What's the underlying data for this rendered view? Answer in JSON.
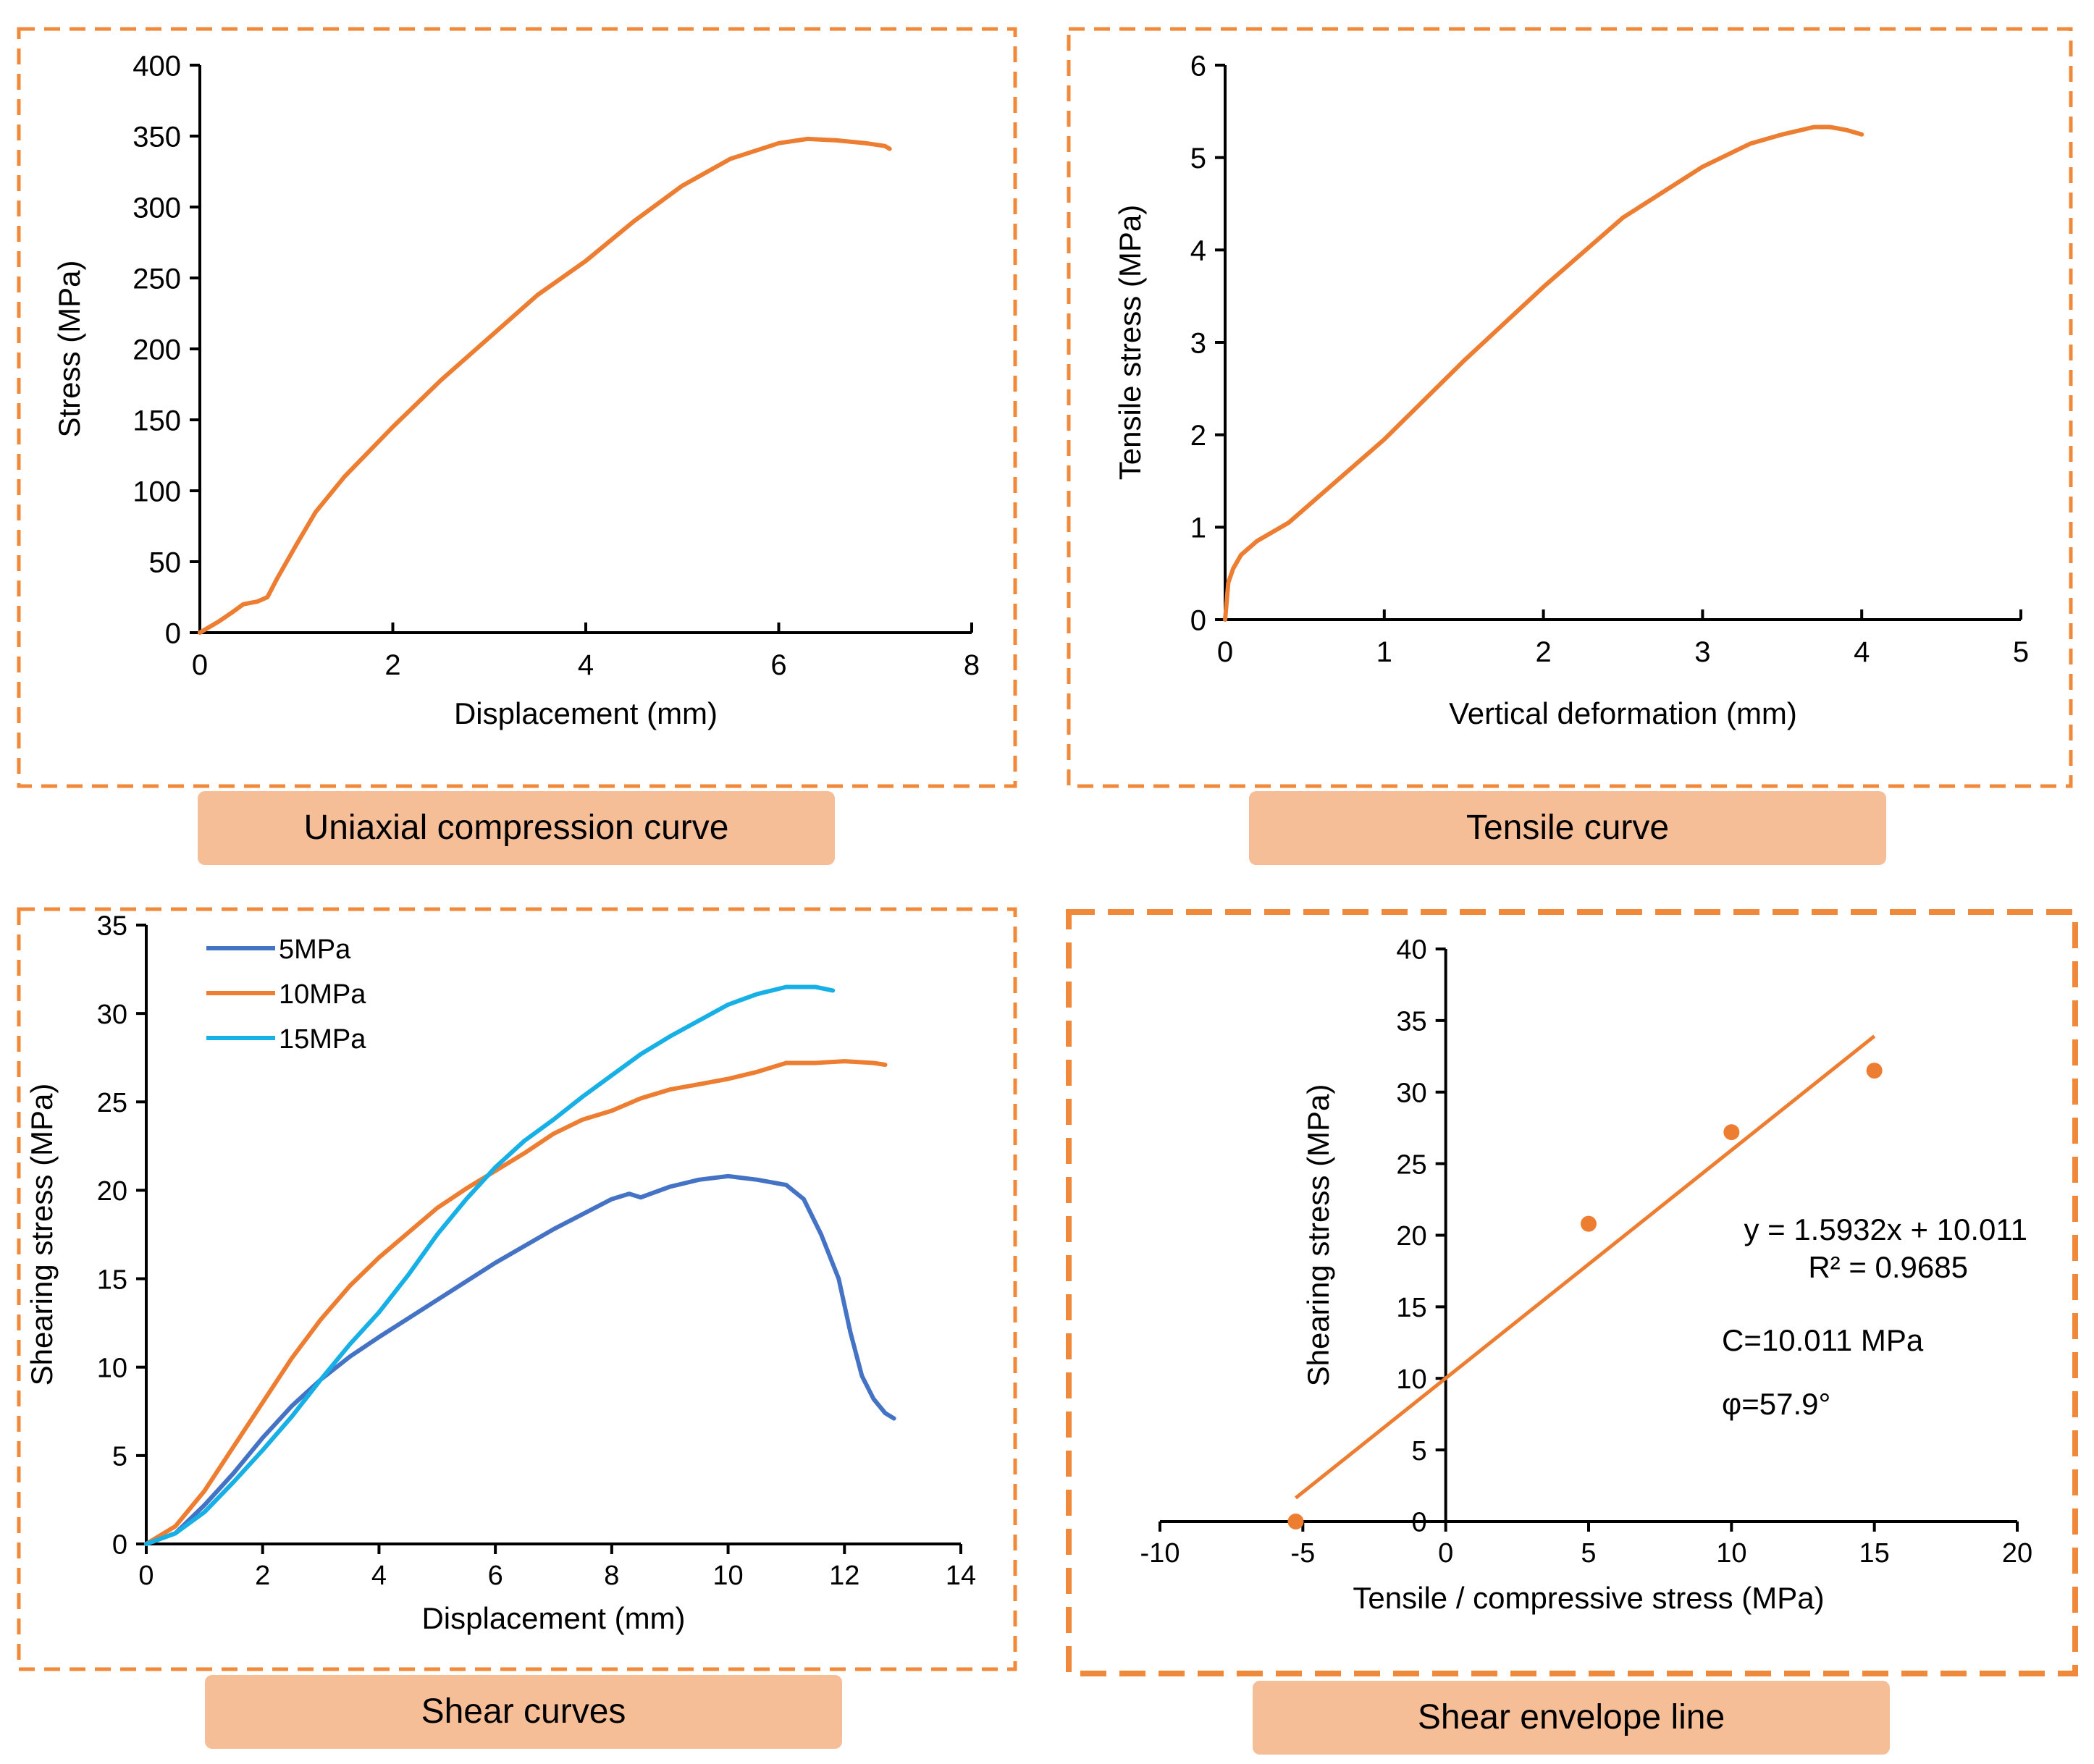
{
  "colors": {
    "panel_border": "#F08A3A",
    "caption_fill": "#F5BE96",
    "orange": "#ED7D31",
    "blue": "#4472C4",
    "cyan": "#16B0E6"
  },
  "captions": {
    "p1": "Uniaxial compression curve",
    "p2": "Tensile curve",
    "p3": "Shear curves",
    "p4": "Shear envelope line"
  },
  "chart_data": [
    {
      "id": "p1",
      "type": "line",
      "xlabel": "Displacement (mm)",
      "ylabel": "Stress (MPa)",
      "xlim": [
        0,
        8
      ],
      "ylim": [
        0,
        400
      ],
      "xticks": [
        0,
        2,
        4,
        6,
        8
      ],
      "yticks": [
        0,
        50,
        100,
        150,
        200,
        250,
        300,
        350,
        400
      ],
      "grid": false,
      "series": [
        {
          "color": "#ED7D31",
          "x": [
            0,
            0.2,
            0.35,
            0.45,
            0.6,
            0.7,
            0.8,
            1.0,
            1.2,
            1.5,
            2.0,
            2.5,
            3.0,
            3.5,
            4.0,
            4.5,
            5.0,
            5.5,
            6.0,
            6.3,
            6.6,
            6.9,
            7.1,
            7.15
          ],
          "y": [
            0,
            8,
            15,
            20,
            22,
            25,
            38,
            62,
            85,
            110,
            145,
            178,
            208,
            238,
            262,
            290,
            315,
            334,
            345,
            348,
            347,
            345,
            343,
            341
          ]
        }
      ]
    },
    {
      "id": "p2",
      "type": "line",
      "xlabel": "Vertical deformation (mm)",
      "ylabel": "Tensile stress (MPa)",
      "xlim": [
        0,
        5
      ],
      "ylim": [
        0,
        6
      ],
      "xticks": [
        0,
        1,
        2,
        3,
        4,
        5
      ],
      "yticks": [
        0,
        1,
        2,
        3,
        4,
        5,
        6
      ],
      "grid": false,
      "series": [
        {
          "color": "#ED7D31",
          "x": [
            0,
            0.02,
            0.05,
            0.1,
            0.2,
            0.4,
            0.6,
            0.8,
            1.0,
            1.5,
            2.0,
            2.5,
            3.0,
            3.3,
            3.5,
            3.7,
            3.8,
            3.9,
            4.0
          ],
          "y": [
            0,
            0.4,
            0.55,
            0.7,
            0.85,
            1.05,
            1.35,
            1.65,
            1.95,
            2.8,
            3.6,
            4.35,
            4.9,
            5.15,
            5.25,
            5.33,
            5.33,
            5.3,
            5.25
          ]
        }
      ]
    },
    {
      "id": "p3",
      "type": "line",
      "xlabel": "Displacement (mm)",
      "ylabel": "Shearing stress (MPa)",
      "xlim": [
        0,
        14
      ],
      "ylim": [
        0,
        35
      ],
      "xticks": [
        0,
        2,
        4,
        6,
        8,
        10,
        12,
        14
      ],
      "yticks": [
        0,
        5,
        10,
        15,
        20,
        25,
        30,
        35
      ],
      "grid": false,
      "legend": "top-left",
      "series": [
        {
          "name": "5MPa",
          "color": "#4472C4",
          "x": [
            0,
            0.5,
            1,
            1.5,
            2,
            2.5,
            3,
            3.5,
            4,
            5,
            6,
            7,
            8,
            8.3,
            8.5,
            9,
            9.5,
            10,
            10.5,
            11,
            11.3,
            11.6,
            11.9,
            12.1,
            12.3,
            12.5,
            12.7,
            12.85
          ],
          "y": [
            0,
            0.6,
            2.2,
            4,
            6,
            7.8,
            9.3,
            10.6,
            11.7,
            13.8,
            15.9,
            17.8,
            19.5,
            19.8,
            19.6,
            20.2,
            20.6,
            20.8,
            20.6,
            20.3,
            19.5,
            17.5,
            15,
            12,
            9.5,
            8.2,
            7.4,
            7.1
          ]
        },
        {
          "name": "10MPa",
          "color": "#ED7D31",
          "x": [
            0,
            0.5,
            1,
            1.5,
            2,
            2.5,
            3,
            3.5,
            4,
            4.5,
            5,
            5.5,
            6,
            6.5,
            7,
            7.5,
            8,
            8.5,
            9,
            9.5,
            10,
            10.5,
            11,
            11.5,
            12,
            12.5,
            12.7
          ],
          "y": [
            0,
            1,
            3,
            5.5,
            8,
            10.5,
            12.7,
            14.6,
            16.2,
            17.6,
            19,
            20.1,
            21.1,
            22.1,
            23.2,
            24,
            24.5,
            25.2,
            25.7,
            26,
            26.3,
            26.7,
            27.2,
            27.2,
            27.3,
            27.2,
            27.1
          ]
        },
        {
          "name": "15MPa",
          "color": "#16B0E6",
          "x": [
            0,
            0.5,
            1,
            1.5,
            2,
            2.5,
            3,
            3.5,
            4,
            4.5,
            5,
            5.5,
            6,
            6.5,
            7,
            7.5,
            8,
            8.5,
            9,
            9.5,
            10,
            10.5,
            11,
            11.5,
            11.8
          ],
          "y": [
            0,
            0.6,
            1.8,
            3.5,
            5.3,
            7.2,
            9.3,
            11.3,
            13.1,
            15.2,
            17.5,
            19.5,
            21.3,
            22.8,
            24,
            25.3,
            26.5,
            27.7,
            28.7,
            29.6,
            30.5,
            31.1,
            31.5,
            31.5,
            31.3
          ]
        }
      ]
    },
    {
      "id": "p4",
      "type": "scatter",
      "xlabel": "Tensile / compressive stress (MPa)",
      "ylabel": "Shearing stress (MPa)",
      "xlim": [
        -10,
        20
      ],
      "ylim": [
        0,
        40
      ],
      "xticks": [
        -10,
        -5,
        0,
        5,
        10,
        15,
        20
      ],
      "yticks": [
        0,
        5,
        10,
        15,
        20,
        25,
        30,
        35,
        40
      ],
      "grid": false,
      "points": {
        "color": "#ED7D31",
        "x": [
          -5.25,
          5,
          10,
          15
        ],
        "y": [
          0,
          20.8,
          27.2,
          31.5
        ]
      },
      "trendline": {
        "color": "#ED7D31",
        "slope": 1.5932,
        "intercept": 10.011,
        "x_range": [
          -5.25,
          15
        ]
      },
      "annotations": [
        "y = 1.5932x + 10.011",
        "R² = 0.9685",
        "C=10.011 MPa",
        "φ=57.9°"
      ]
    }
  ]
}
